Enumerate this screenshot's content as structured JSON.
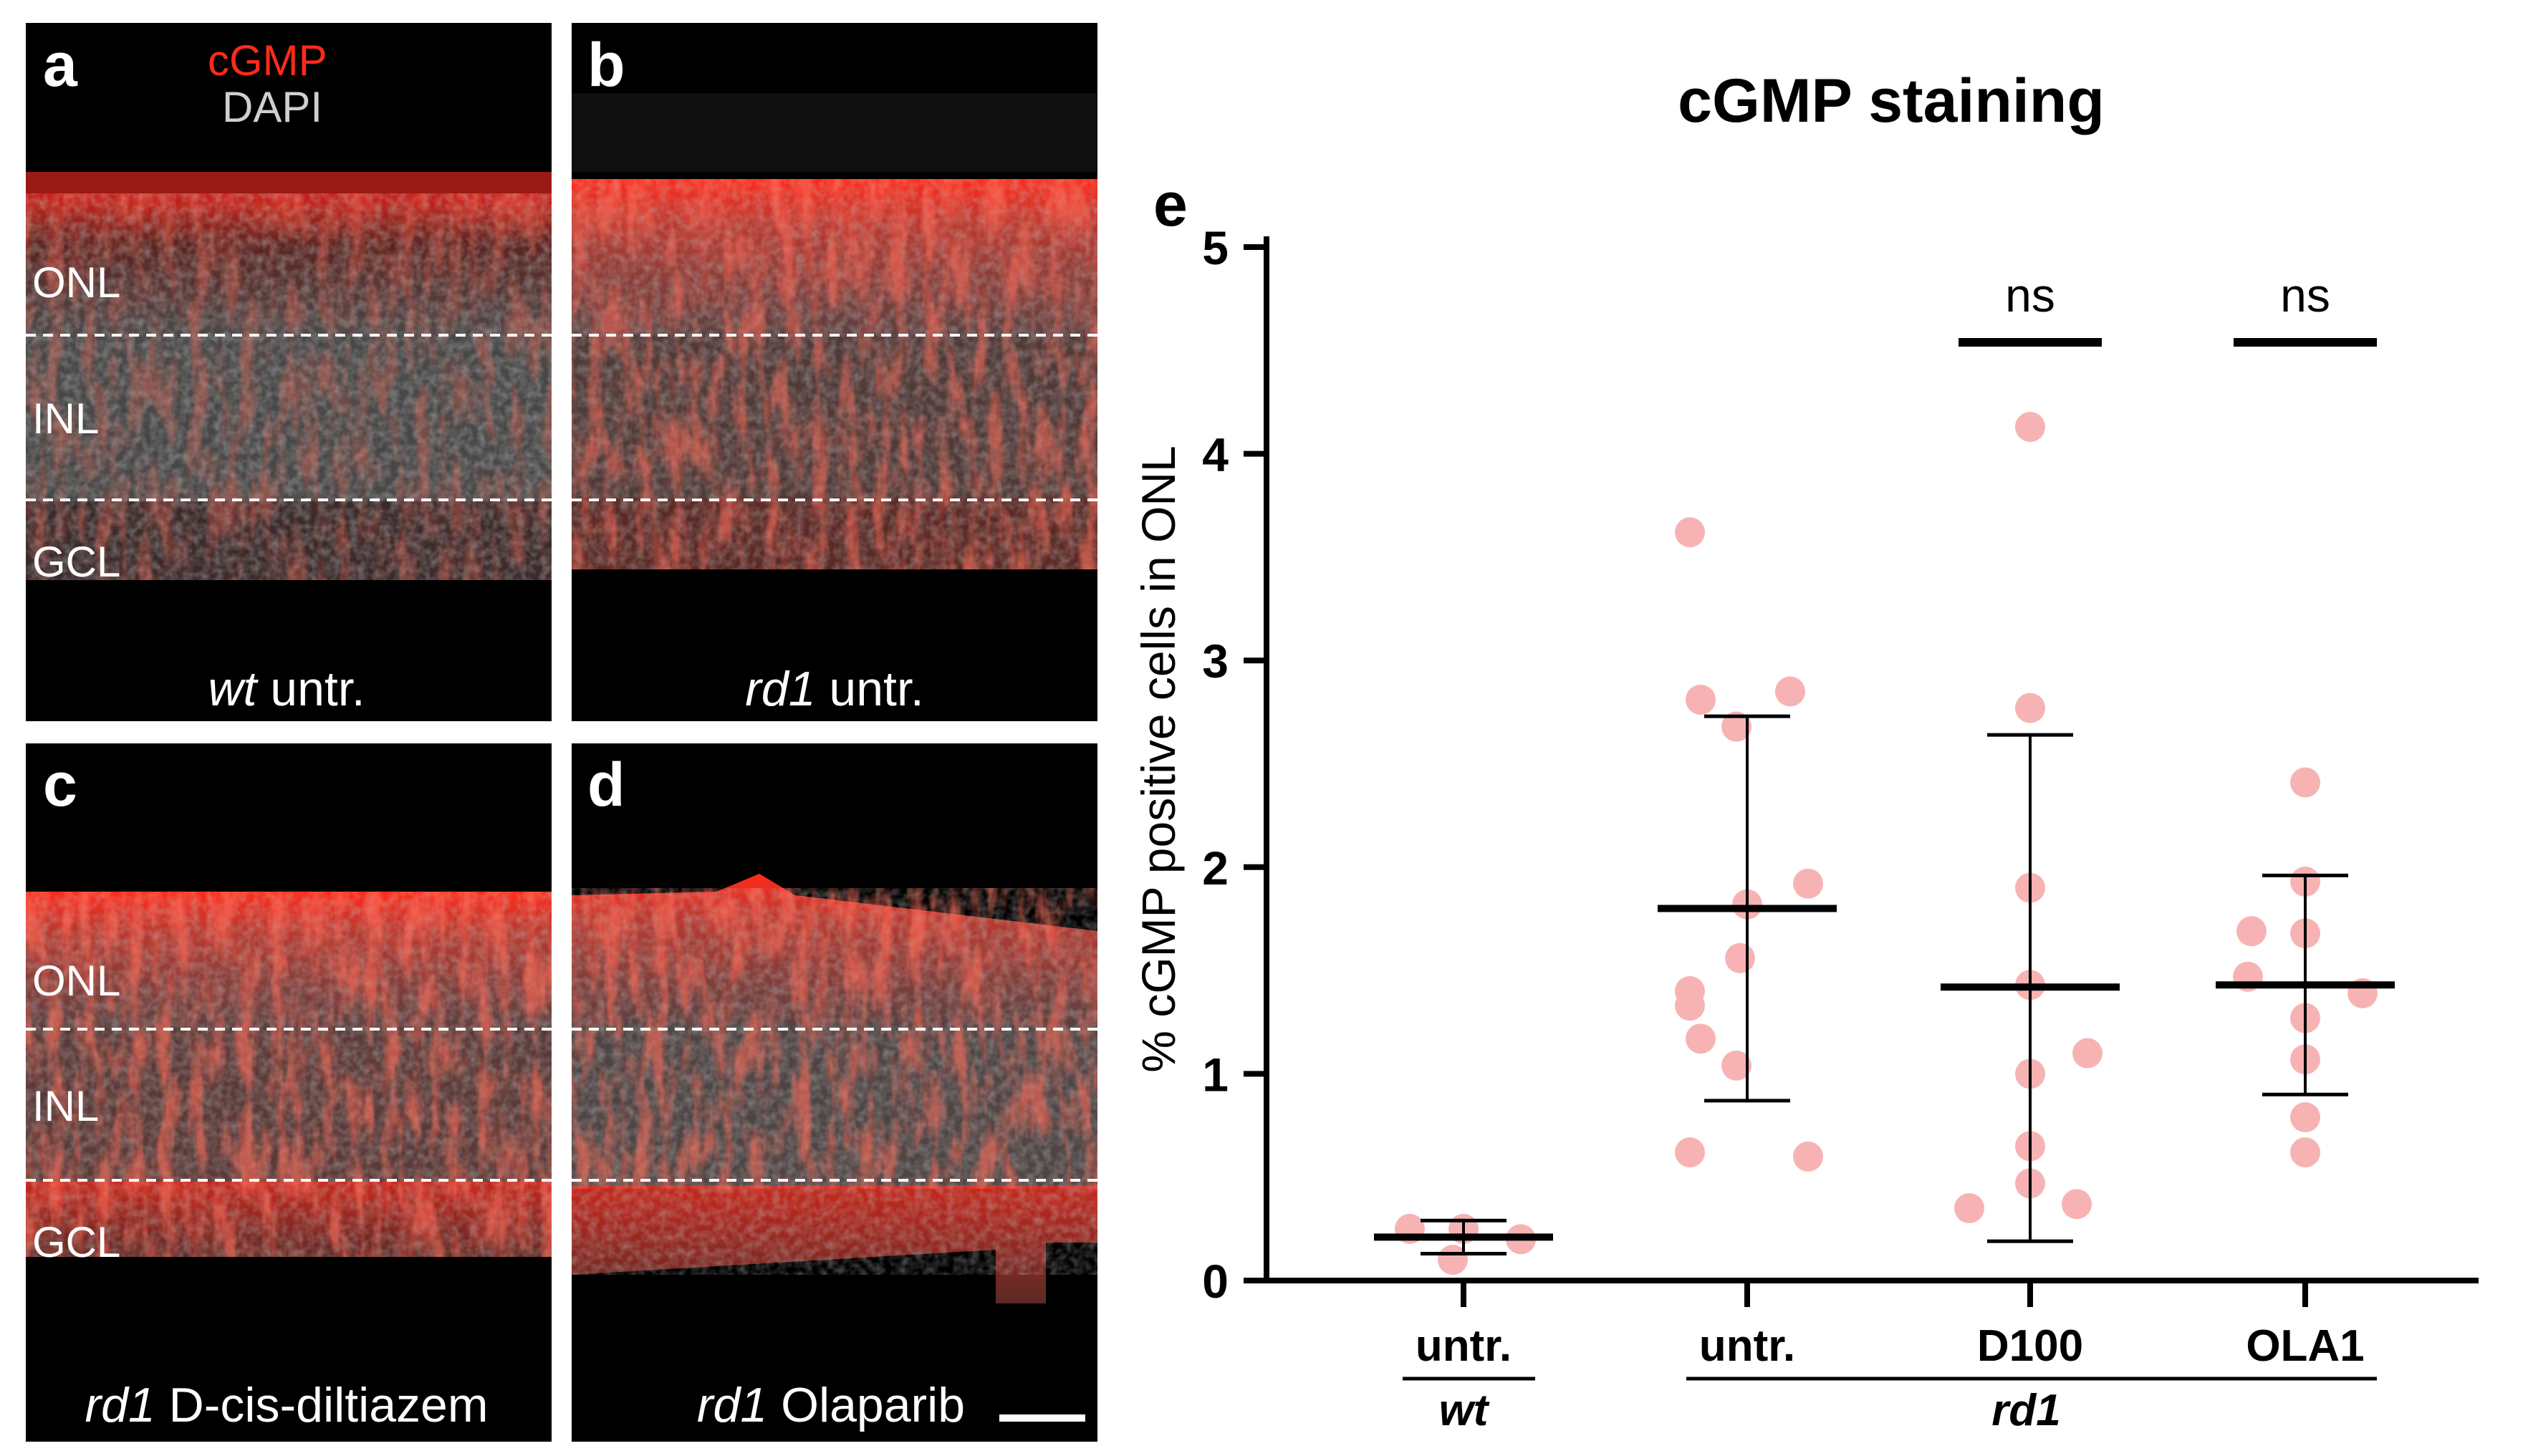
{
  "panels": [
    {
      "letter": "a",
      "regions": [
        "ONL",
        "INL",
        "GCL"
      ],
      "caption_italic": "wt",
      "caption_rest": " untr.",
      "legend": [
        "cGMP",
        "DAPI"
      ],
      "intensity": "low"
    },
    {
      "letter": "b",
      "regions": [],
      "caption_italic": "rd1",
      "caption_rest": " untr.",
      "intensity": "medium"
    },
    {
      "letter": "c",
      "regions": [
        "ONL",
        "INL",
        "GCL"
      ],
      "caption_italic": "rd1",
      "caption_rest": " D-cis-diltiazem",
      "intensity": "high"
    },
    {
      "letter": "d",
      "regions": [],
      "caption_italic": "rd1",
      "caption_rest": " Olaparib",
      "intensity": "high"
    }
  ],
  "colors": {
    "cgmp": "#ff2a1a",
    "dapi": "#cfcfcf",
    "points": "#f7b3b3",
    "axis": "#000000"
  },
  "chart_data": {
    "type": "scatter",
    "panel_letter": "e",
    "title": "cGMP staining",
    "ylabel": "% cGMP positive cells in ONL",
    "ylim": [
      0,
      5
    ],
    "yticks": [
      "0",
      "1",
      "2",
      "3",
      "4",
      "5"
    ],
    "groups": [
      {
        "label": "untr.",
        "points": [
          0.25,
          0.1,
          0.2,
          0.25
        ],
        "mean": 0.21,
        "sd_low": 0.13,
        "sd_high": 0.29,
        "significance": ""
      },
      {
        "label": "untr.",
        "points": [
          3.62,
          2.85,
          2.81,
          2.68,
          1.92,
          1.82,
          1.56,
          1.4,
          1.33,
          1.17,
          1.04,
          0.62,
          0.6
        ],
        "mean": 1.8,
        "sd_low": 0.87,
        "sd_high": 2.73,
        "significance": ""
      },
      {
        "label": "D100",
        "points": [
          4.13,
          2.77,
          1.9,
          1.43,
          1.1,
          1.0,
          0.65,
          0.47,
          0.37,
          0.35
        ],
        "mean": 1.42,
        "sd_low": 0.19,
        "sd_high": 2.64,
        "significance": "ns"
      },
      {
        "label": "OLA1",
        "points": [
          2.41,
          1.93,
          1.69,
          1.68,
          1.47,
          1.39,
          1.27,
          1.07,
          0.79,
          0.62
        ],
        "mean": 1.43,
        "sd_low": 0.9,
        "sd_high": 1.96,
        "significance": "ns"
      }
    ],
    "brackets": [
      {
        "label": "wt",
        "groups": [
          0
        ]
      },
      {
        "label": "rd1",
        "groups": [
          1,
          2,
          3
        ]
      }
    ]
  }
}
